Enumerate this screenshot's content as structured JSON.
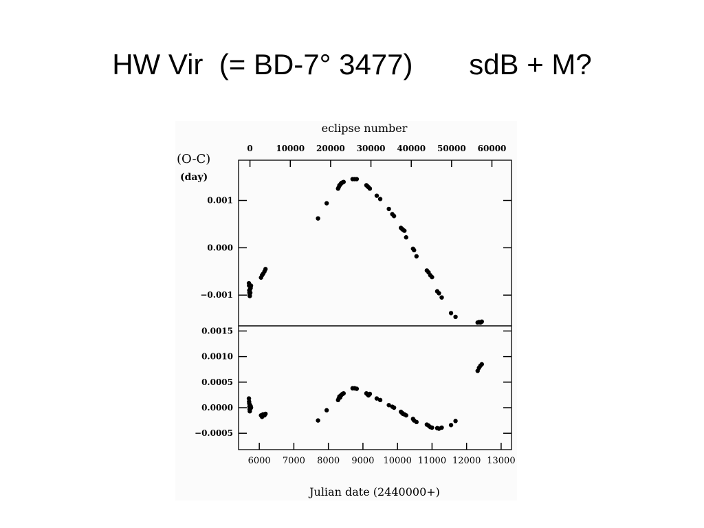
{
  "slide": {
    "title": "HW Vir  (= BD-7° 3477)       sdB + M?"
  },
  "chart_data": [
    {
      "type": "scatter",
      "title": "",
      "top_axis_label": "eclipse number",
      "top_ticks": [
        0,
        10000,
        20000,
        30000,
        40000,
        50000,
        60000
      ],
      "ylabel": "(O-C)",
      "ylabel_unit": "(day)",
      "xlabel": "",
      "xlim": [
        5400,
        13300
      ],
      "ylim": [
        -0.00165,
        0.00185
      ],
      "y_ticks": [
        0.001,
        0.0,
        -0.001
      ],
      "y_tick_labels": [
        "0.001",
        "0.000",
        "−0.001"
      ],
      "series": [
        {
          "points": [
            [
              5700,
              -0.00075
            ],
            [
              5705,
              -0.0008
            ],
            [
              5710,
              -0.0009
            ],
            [
              5715,
              -0.00095
            ],
            [
              5720,
              -0.001
            ],
            [
              5725,
              -0.00102
            ],
            [
              5730,
              -0.00088
            ],
            [
              5740,
              -0.00095
            ],
            [
              5750,
              -0.00085
            ],
            [
              5760,
              -0.0008
            ],
            [
              6050,
              -0.00063
            ],
            [
              6080,
              -0.00058
            ],
            [
              6110,
              -0.00055
            ],
            [
              6150,
              -0.0005
            ],
            [
              6180,
              -0.00045
            ],
            [
              7700,
              0.00062
            ],
            [
              7950,
              0.00094
            ],
            [
              8280,
              0.00125
            ],
            [
              8300,
              0.00128
            ],
            [
              8320,
              0.00132
            ],
            [
              8340,
              0.00133
            ],
            [
              8360,
              0.00135
            ],
            [
              8380,
              0.00137
            ],
            [
              8410,
              0.00138
            ],
            [
              8440,
              0.00139
            ],
            [
              8700,
              0.00145
            ],
            [
              8760,
              0.00145
            ],
            [
              8820,
              0.00145
            ],
            [
              9100,
              0.00132
            ],
            [
              9130,
              0.0013
            ],
            [
              9160,
              0.00128
            ],
            [
              9200,
              0.00125
            ],
            [
              9400,
              0.0011
            ],
            [
              9500,
              0.00103
            ],
            [
              9750,
              0.00082
            ],
            [
              9850,
              0.00071
            ],
            [
              9900,
              0.00067
            ],
            [
              10100,
              0.00042
            ],
            [
              10130,
              0.0004
            ],
            [
              10160,
              0.00038
            ],
            [
              10200,
              0.00036
            ],
            [
              10250,
              0.00022
            ],
            [
              10450,
              -2e-05
            ],
            [
              10480,
              -5e-05
            ],
            [
              10550,
              -0.00018
            ],
            [
              10850,
              -0.00048
            ],
            [
              10900,
              -0.00052
            ],
            [
              10950,
              -0.00058
            ],
            [
              11000,
              -0.00062
            ],
            [
              11150,
              -0.00092
            ],
            [
              11200,
              -0.00096
            ],
            [
              11280,
              -0.00105
            ],
            [
              11550,
              -0.00138
            ],
            [
              11680,
              -0.00146
            ],
            [
              12320,
              -0.00158
            ],
            [
              12360,
              -0.00157
            ],
            [
              12400,
              -0.00158
            ],
            [
              12440,
              -0.00156
            ]
          ]
        }
      ]
    },
    {
      "type": "scatter",
      "title": "",
      "xlabel": "Julian date (2440000+)",
      "ylabel": "",
      "xlim": [
        5400,
        13300
      ],
      "ylim": [
        -0.00082,
        0.0016
      ],
      "x_ticks": [
        6000,
        7000,
        8000,
        9000,
        10000,
        11000,
        12000,
        13000
      ],
      "x_tick_labels": [
        "6000",
        "7000",
        "8000",
        "9000",
        "10000",
        "11000",
        "12000",
        "13000"
      ],
      "y_ticks": [
        0.0015,
        0.001,
        0.0005,
        0.0,
        -0.0005
      ],
      "y_tick_labels": [
        "0.0015",
        "0.0010",
        "0.0005",
        "0.0000",
        "−0.0005"
      ],
      "series": [
        {
          "points": [
            [
              5700,
              0.00018
            ],
            [
              5705,
              0.00012
            ],
            [
              5710,
              8e-05
            ],
            [
              5715,
              2e-05
            ],
            [
              5720,
              -3e-05
            ],
            [
              5725,
              -7e-05
            ],
            [
              5730,
              5e-05
            ],
            [
              5740,
              -2e-05
            ],
            [
              5750,
              3e-05
            ],
            [
              5760,
              0.0
            ],
            [
              6050,
              -0.00015
            ],
            [
              6080,
              -0.00018
            ],
            [
              6110,
              -0.00013
            ],
            [
              6150,
              -0.00015
            ],
            [
              6180,
              -0.00012
            ],
            [
              7700,
              -0.00025
            ],
            [
              7950,
              -5e-05
            ],
            [
              8280,
              0.00015
            ],
            [
              8300,
              0.00018
            ],
            [
              8320,
              0.00022
            ],
            [
              8340,
              0.0002
            ],
            [
              8360,
              0.00024
            ],
            [
              8380,
              0.00025
            ],
            [
              8410,
              0.00027
            ],
            [
              8440,
              0.00028
            ],
            [
              8700,
              0.00038
            ],
            [
              8760,
              0.00038
            ],
            [
              8820,
              0.00037
            ],
            [
              9100,
              0.00028
            ],
            [
              9130,
              0.00026
            ],
            [
              9160,
              0.00024
            ],
            [
              9200,
              0.00027
            ],
            [
              9400,
              0.00018
            ],
            [
              9500,
              0.00015
            ],
            [
              9750,
              5e-05
            ],
            [
              9850,
              2e-05
            ],
            [
              9900,
              0.0
            ],
            [
              10100,
              -8e-05
            ],
            [
              10130,
              -0.0001
            ],
            [
              10160,
              -0.00012
            ],
            [
              10200,
              -0.00013
            ],
            [
              10250,
              -0.00015
            ],
            [
              10450,
              -0.00022
            ],
            [
              10480,
              -0.00025
            ],
            [
              10550,
              -0.00028
            ],
            [
              10850,
              -0.00033
            ],
            [
              10900,
              -0.00035
            ],
            [
              10950,
              -0.00038
            ],
            [
              11000,
              -0.00039
            ],
            [
              11150,
              -0.0004
            ],
            [
              11200,
              -0.00041
            ],
            [
              11280,
              -0.00039
            ],
            [
              11550,
              -0.00034
            ],
            [
              11680,
              -0.00026
            ],
            [
              12320,
              0.00072
            ],
            [
              12360,
              0.00078
            ],
            [
              12400,
              0.00082
            ],
            [
              12440,
              0.00085
            ]
          ]
        }
      ]
    }
  ]
}
